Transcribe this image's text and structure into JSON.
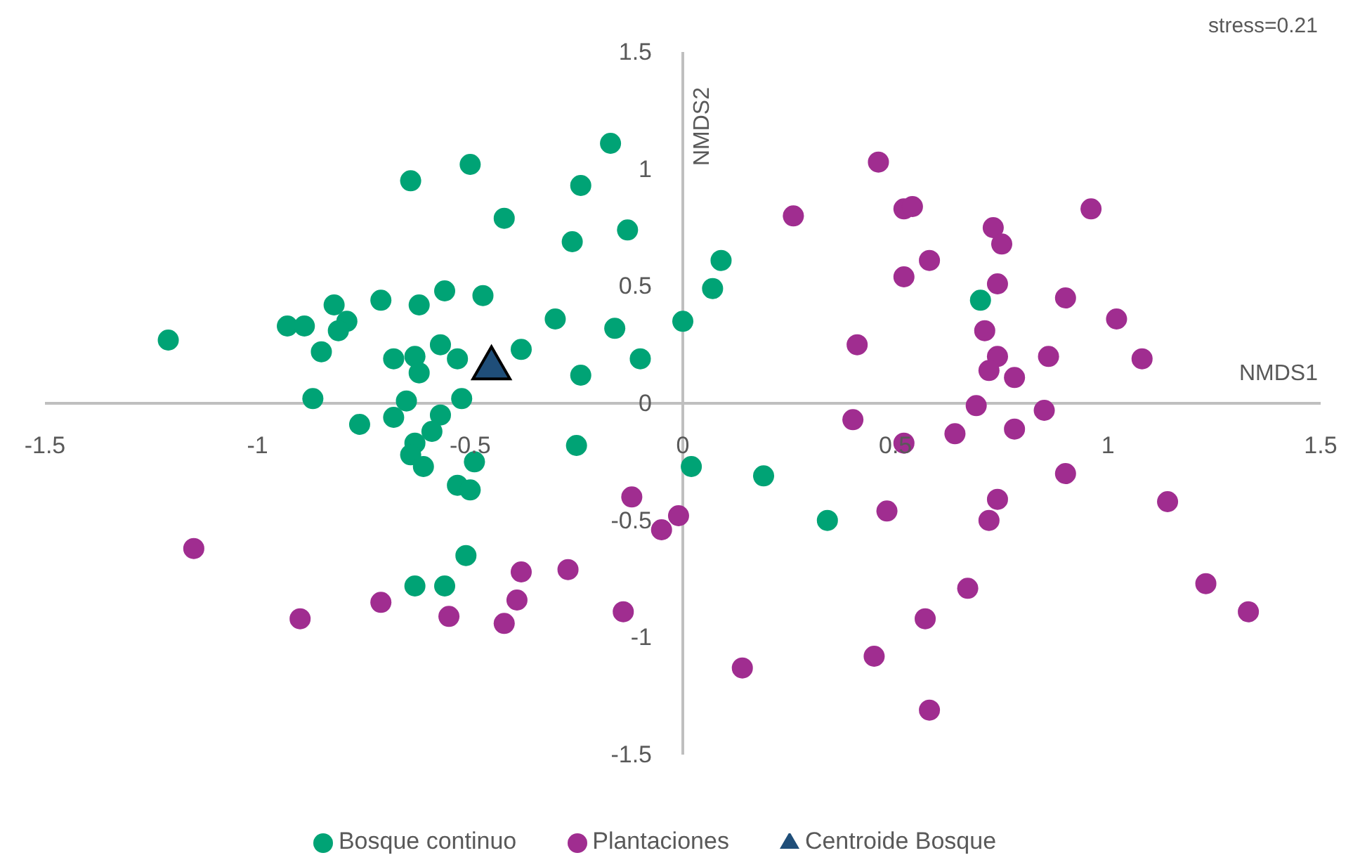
{
  "chart_data": {
    "type": "scatter",
    "xlabel": "NMDS1",
    "ylabel": "NMDS2",
    "annotations": [
      "stress=0.21"
    ],
    "xlim": [
      -1.5,
      1.5
    ],
    "xticks": [
      -1.5,
      -1,
      -0.5,
      0,
      0.5,
      1,
      1.5
    ],
    "ylim": [
      -1.5,
      1.5
    ],
    "yticks": [
      -1.5,
      -1,
      -0.5,
      0,
      0.5,
      1,
      1.5
    ],
    "legend": "bottom",
    "series": [
      {
        "name": "Bosque continuo",
        "color": "#00a375",
        "marker": "circle",
        "x": [
          -1.21,
          -0.93,
          -0.89,
          -0.82,
          -0.79,
          -0.81,
          -0.85,
          -0.71,
          -0.62,
          -0.56,
          -0.47,
          -0.64,
          -0.5,
          -0.17,
          -0.24,
          -0.42,
          -0.13,
          -0.26,
          0.09,
          0.07,
          0,
          -0.3,
          -0.16,
          -0.38,
          -0.1,
          -0.24,
          -0.53,
          -0.52,
          -0.68,
          -0.63,
          -0.62,
          -0.57,
          -0.87,
          -0.65,
          -0.76,
          -0.68,
          -0.57,
          -0.59,
          -0.63,
          -0.64,
          -0.61,
          -0.49,
          -0.53,
          -0.5,
          -0.51,
          -0.63,
          -0.56,
          -0.25,
          0.02,
          0.19,
          0.7,
          0.34
        ],
        "values": [
          0.27,
          0.33,
          0.33,
          0.42,
          0.35,
          0.31,
          0.22,
          0.44,
          0.42,
          0.48,
          0.46,
          0.95,
          1.02,
          1.11,
          0.93,
          0.79,
          0.74,
          0.69,
          0.61,
          0.49,
          0.35,
          0.36,
          0.32,
          0.23,
          0.19,
          0.12,
          0.19,
          0.02,
          0.19,
          0.2,
          0.13,
          0.25,
          0.02,
          0.01,
          -0.09,
          -0.06,
          -0.05,
          -0.12,
          -0.17,
          -0.22,
          -0.27,
          -0.25,
          -0.35,
          -0.37,
          -0.65,
          -0.78,
          -0.78,
          -0.18,
          -0.27,
          -0.31,
          0.44,
          -0.5
        ]
      },
      {
        "name": "Plantaciones",
        "color": "#a02d90",
        "marker": "circle",
        "x": [
          0.46,
          0.26,
          0.52,
          0.54,
          0.96,
          0.73,
          0.75,
          0.58,
          0.52,
          0.74,
          0.9,
          1.02,
          1.08,
          0.41,
          0.71,
          0.74,
          0.86,
          0.72,
          0.78,
          0.69,
          0.85,
          0.4,
          0.64,
          0.78,
          0.52,
          0.9,
          1.14,
          0.74,
          0.72,
          0.48,
          1.23,
          1.33,
          0.67,
          0.57,
          0.45,
          0.14,
          0.58,
          -0.12,
          -0.01,
          -0.05,
          -0.38,
          -0.27,
          -0.39,
          -0.42,
          -0.14,
          -1.15,
          -0.9,
          -0.71,
          -0.55
        ],
        "values": [
          1.03,
          0.8,
          0.83,
          0.84,
          0.83,
          0.75,
          0.68,
          0.61,
          0.54,
          0.51,
          0.45,
          0.36,
          0.19,
          0.25,
          0.31,
          0.2,
          0.2,
          0.14,
          0.11,
          -0.01,
          -0.03,
          -0.07,
          -0.13,
          -0.11,
          -0.17,
          -0.3,
          -0.42,
          -0.41,
          -0.5,
          -0.46,
          -0.77,
          -0.89,
          -0.79,
          -0.92,
          -1.08,
          -1.13,
          -1.31,
          -0.4,
          -0.48,
          -0.54,
          -0.72,
          -0.71,
          -0.84,
          -0.94,
          -0.89,
          -0.62,
          -0.92,
          -0.85,
          -0.91
        ]
      },
      {
        "name": "Centroide Bosque",
        "color": "#1f4e79",
        "marker": "triangle",
        "x": [
          -0.45
        ],
        "values": [
          0.15
        ]
      }
    ]
  }
}
